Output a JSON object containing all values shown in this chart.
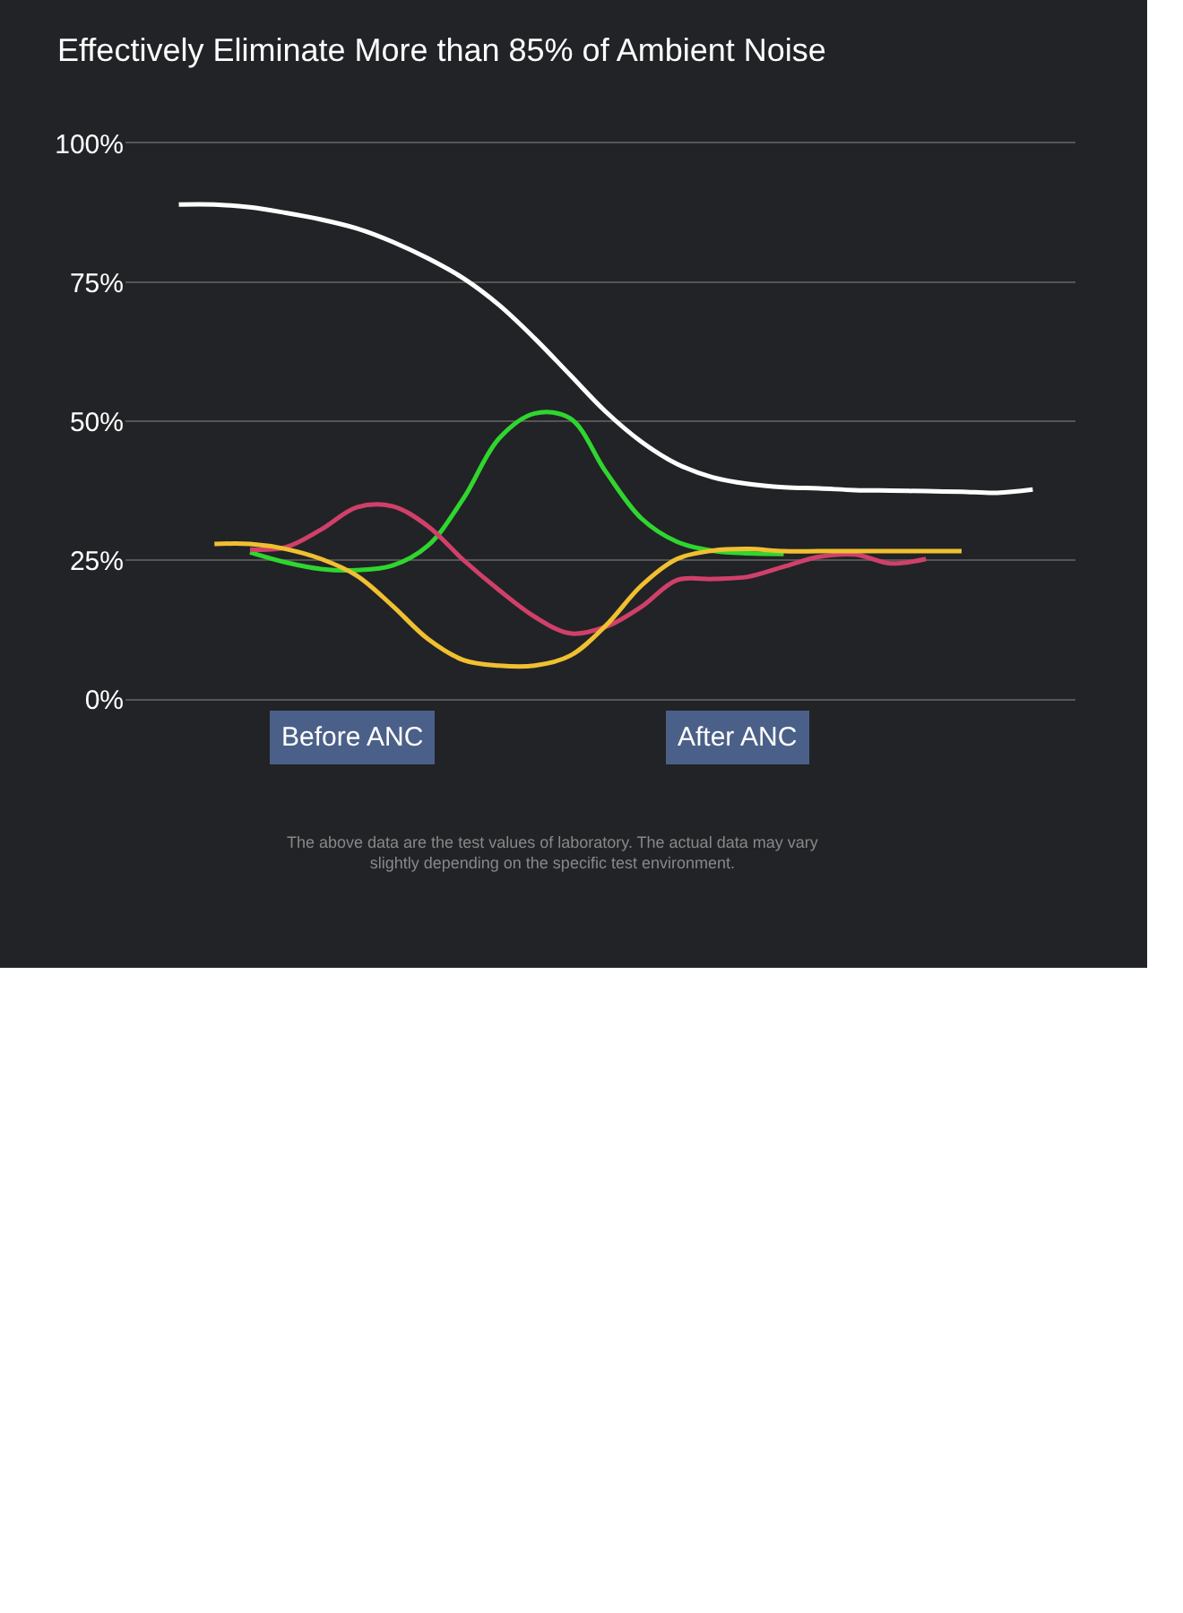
{
  "chart_data": {
    "type": "line",
    "title": "Effectively Eliminate More than 85% of Ambient Noise",
    "categories": [
      null,
      null,
      null,
      null,
      null,
      null,
      null,
      null,
      null,
      null,
      null,
      null,
      null,
      null,
      null,
      null,
      null,
      null,
      null,
      null,
      null,
      null,
      null,
      null,
      null
    ],
    "series": [
      {
        "color": "#ffffff",
        "values": [
          89,
          89,
          88.5,
          87.5,
          86.3,
          84.7,
          82.3,
          79.3,
          75.7,
          70.9,
          64.9,
          58.3,
          51.7,
          46.3,
          42.3,
          39.9,
          38.7,
          38.1,
          37.9,
          37.6,
          37.5,
          37.4,
          37.3,
          37.1,
          37.7
        ]
      },
      {
        "color": "#2fd62f",
        "values": [
          null,
          null,
          26.4,
          24.6,
          23.4,
          23.2,
          24.0,
          27.6,
          36.1,
          46.9,
          51.4,
          50.5,
          40.9,
          32.5,
          28.3,
          26.7,
          26.2,
          26.1,
          null,
          null,
          null,
          null,
          null,
          null,
          null
        ]
      },
      {
        "color": "#d0406a",
        "values": [
          null,
          null,
          26.9,
          27.3,
          30.5,
          34.5,
          34.7,
          31.1,
          25.0,
          19.6,
          14.8,
          11.8,
          13.0,
          16.6,
          21.4,
          21.6,
          22.0,
          23.8,
          25.6,
          26.0,
          24.4,
          25.2,
          null,
          null,
          null
        ]
      },
      {
        "color": "#f0c030",
        "values": [
          null,
          27.9,
          27.9,
          27.0,
          25.2,
          22.2,
          16.8,
          10.8,
          7.0,
          6.0,
          6.0,
          7.8,
          13.2,
          20.4,
          25.2,
          26.7,
          27.0,
          26.6,
          26.6,
          26.6,
          26.6,
          26.6,
          26.6,
          null,
          null
        ]
      }
    ],
    "ylim": [
      0,
      100
    ],
    "yticks": [
      {
        "value": 0,
        "label": "0%"
      },
      {
        "value": 25,
        "label": "25%"
      },
      {
        "value": 50,
        "label": "50%"
      },
      {
        "value": 75,
        "label": "75%"
      },
      {
        "value": 100,
        "label": "100%"
      }
    ],
    "grid": "y",
    "tick_labels": "y",
    "legend": false,
    "annotations": [
      "Before ANC",
      "After ANC",
      "The above data are the test values of laboratory. The actual data may vary slightly depending on the specific test environment."
    ]
  }
}
